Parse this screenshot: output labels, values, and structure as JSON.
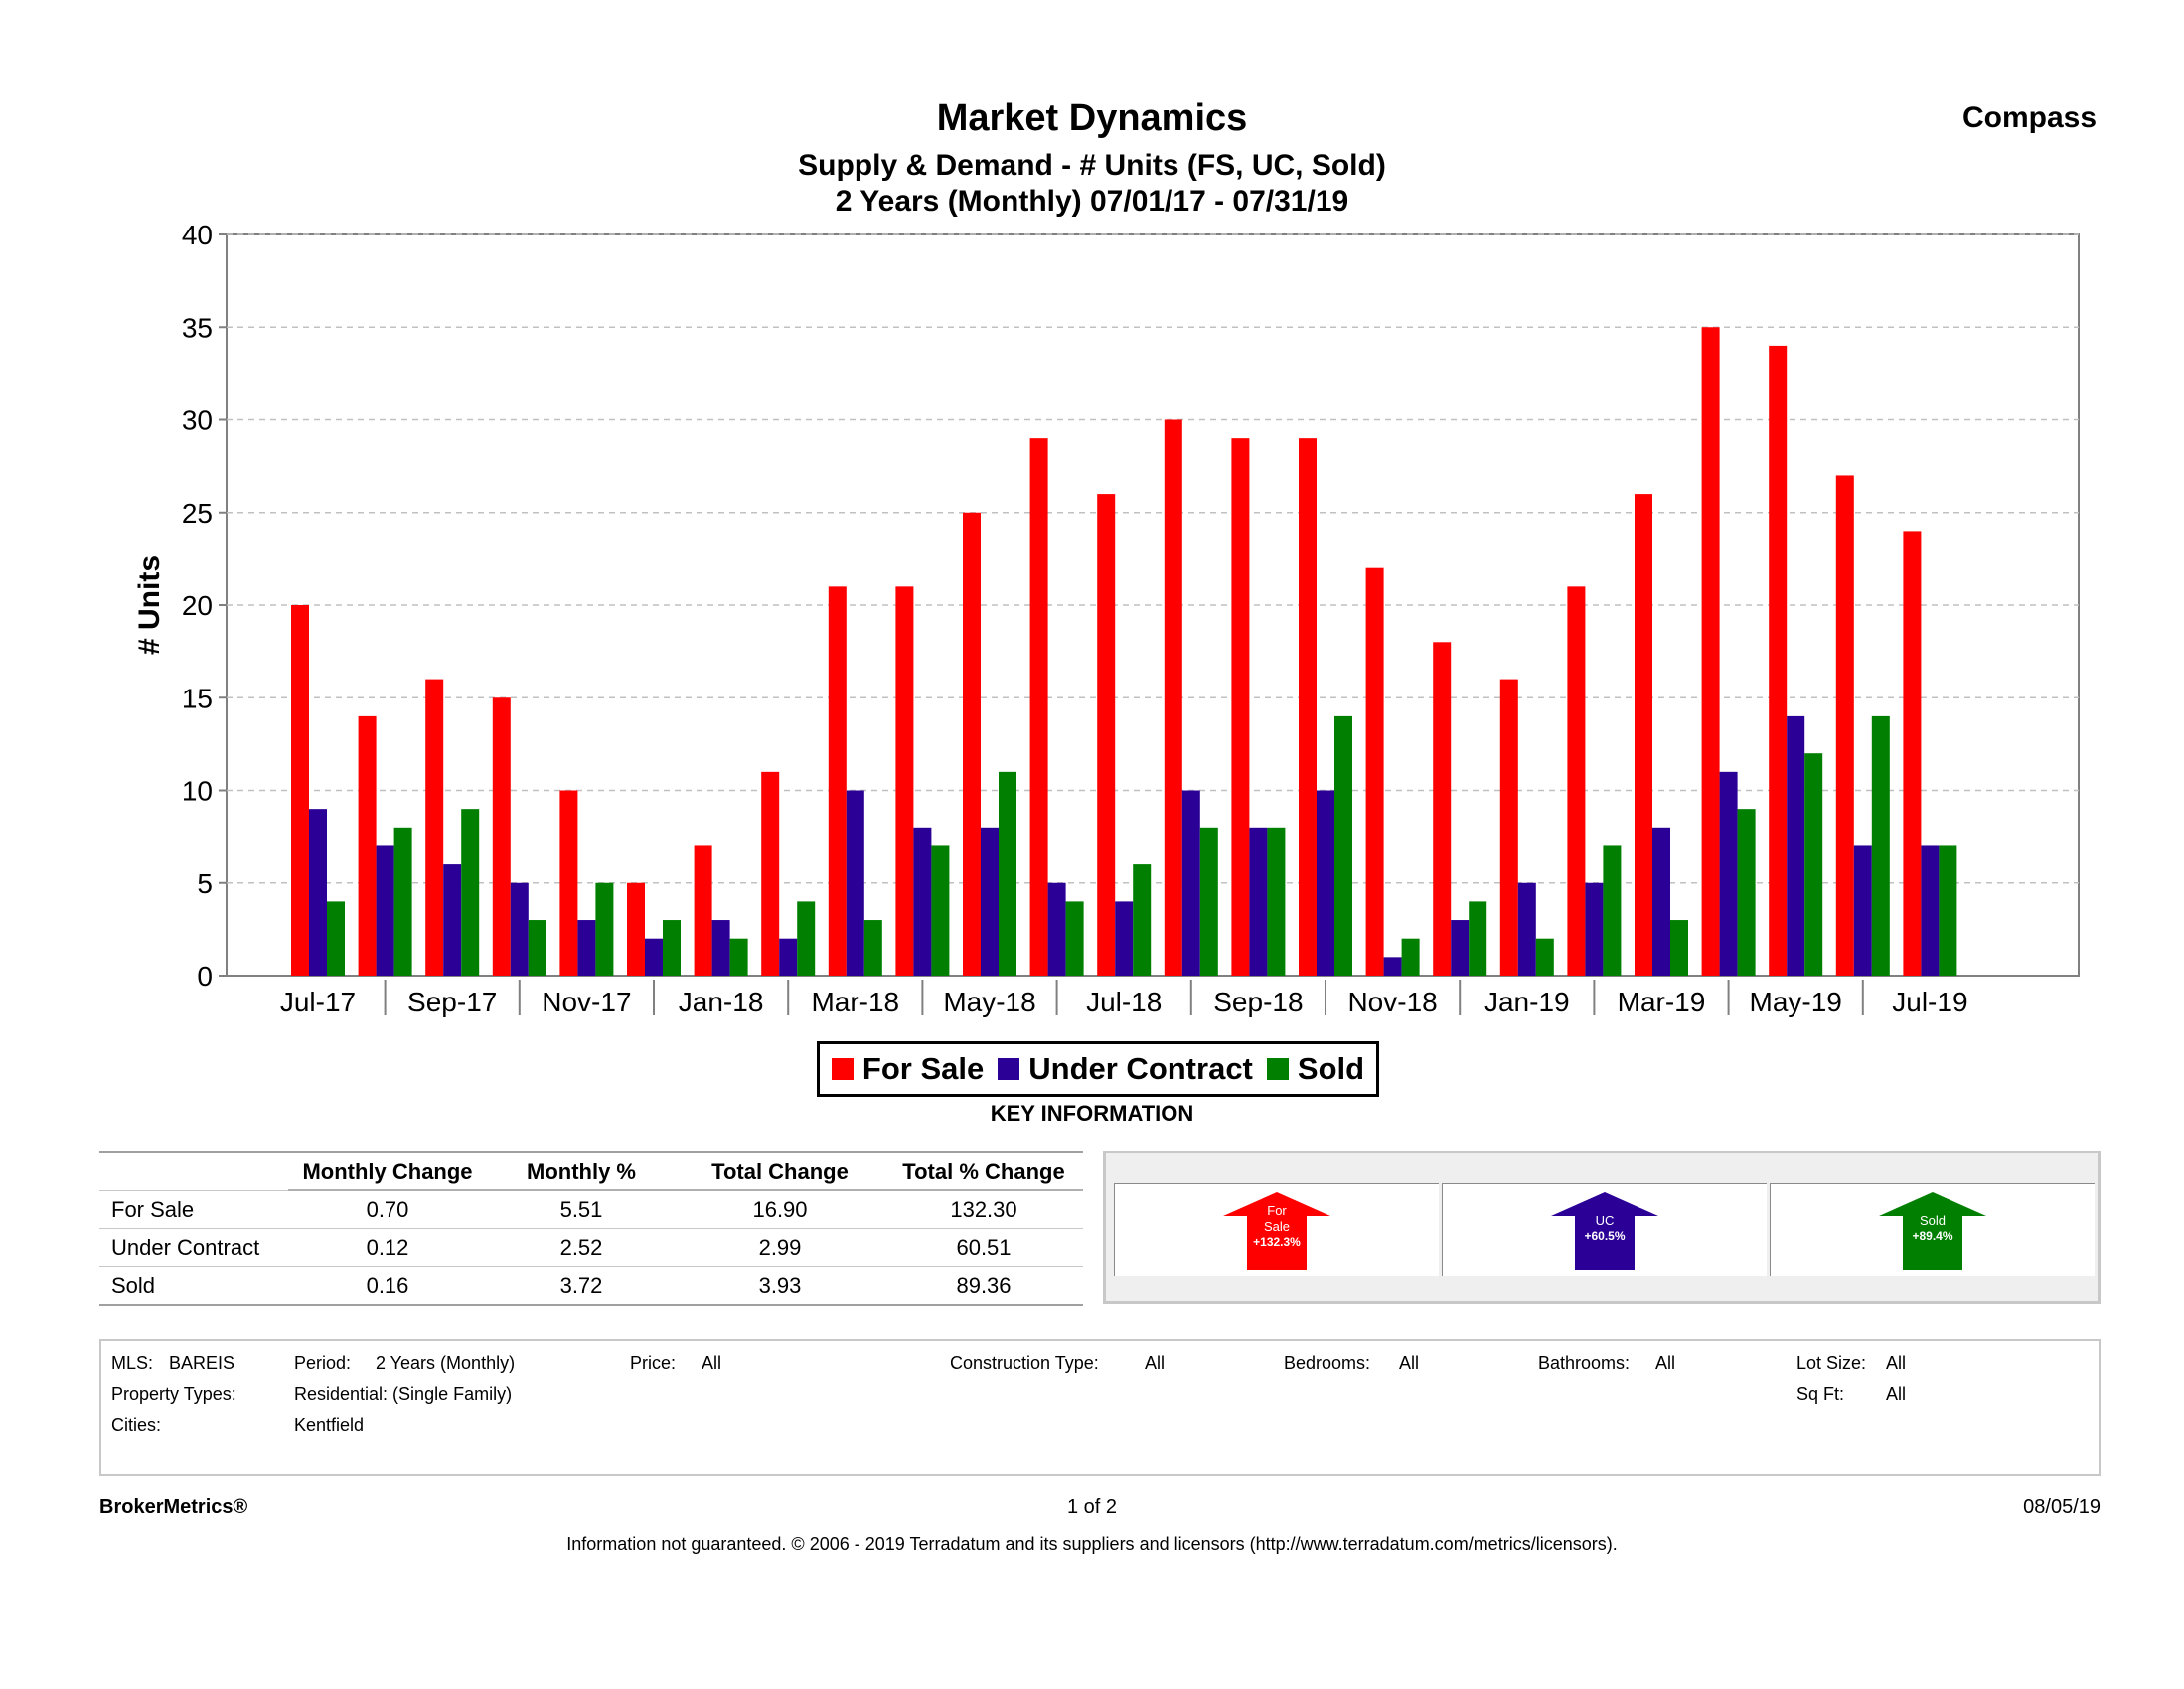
{
  "header": {
    "title": "Market Dynamics",
    "subtitle": "Supply & Demand - # Units (FS, UC, Sold)",
    "period": "2 Years (Monthly) 07/01/17 - 07/31/19",
    "brand": "Compass"
  },
  "chart_data": {
    "type": "bar",
    "title": "Market Dynamics",
    "subtitle": "Supply & Demand - # Units (FS, UC, Sold)",
    "ylabel": "# Units",
    "xlabel": "",
    "ylim": [
      0,
      40
    ],
    "yticks": [
      0,
      5,
      10,
      15,
      20,
      25,
      30,
      35,
      40
    ],
    "grid": true,
    "legend_position": "bottom",
    "categories": [
      "Jul-17",
      "Aug-17",
      "Sep-17",
      "Oct-17",
      "Nov-17",
      "Dec-17",
      "Jan-18",
      "Feb-18",
      "Mar-18",
      "Apr-18",
      "May-18",
      "Jun-18",
      "Jul-18",
      "Aug-18",
      "Sep-18",
      "Oct-18",
      "Nov-18",
      "Dec-18",
      "Jan-19",
      "Feb-19",
      "Mar-19",
      "Apr-19",
      "May-19",
      "Jun-19",
      "Jul-19"
    ],
    "tick_labels": [
      "Jul-17",
      "Sep-17",
      "Nov-17",
      "Jan-18",
      "Mar-18",
      "May-18",
      "Jul-18",
      "Sep-18",
      "Nov-18",
      "Jan-19",
      "Mar-19",
      "May-19",
      "Jul-19"
    ],
    "series": [
      {
        "name": "For Sale",
        "color": "#ff0000",
        "values": [
          20,
          14,
          16,
          15,
          10,
          5,
          7,
          11,
          21,
          21,
          25,
          29,
          26,
          30,
          29,
          29,
          22,
          18,
          16,
          21,
          26,
          35,
          34,
          27,
          24
        ]
      },
      {
        "name": "Under Contract",
        "color": "#2a0096",
        "values": [
          9,
          7,
          6,
          5,
          3,
          2,
          3,
          2,
          10,
          8,
          8,
          5,
          4,
          10,
          8,
          10,
          1,
          3,
          5,
          5,
          8,
          11,
          14,
          7,
          7
        ]
      },
      {
        "name": "Sold",
        "color": "#007f00",
        "values": [
          4,
          8,
          9,
          3,
          5,
          3,
          2,
          4,
          3,
          7,
          11,
          4,
          6,
          8,
          8,
          14,
          2,
          4,
          2,
          7,
          3,
          9,
          12,
          14,
          7
        ]
      }
    ]
  },
  "key_info_label": "KEY INFORMATION",
  "stats": {
    "headers": [
      "",
      "Monthly Change",
      "Monthly %",
      "Total Change",
      "Total % Change"
    ],
    "rows": [
      {
        "label": "For Sale",
        "monthly_change": "0.70",
        "monthly_pct": "5.51",
        "total_change": "16.90",
        "total_pct": "132.30"
      },
      {
        "label": "Under Contract",
        "monthly_change": "0.12",
        "monthly_pct": "2.52",
        "total_change": "2.99",
        "total_pct": "60.51"
      },
      {
        "label": "Sold",
        "monthly_change": "0.16",
        "monthly_pct": "3.72",
        "total_change": "3.93",
        "total_pct": "89.36"
      }
    ]
  },
  "arrows": [
    {
      "line1": "For",
      "line2": "Sale",
      "line3": "+132.3%",
      "color": "#ff0000"
    },
    {
      "line1": "UC",
      "line2": "+60.5%",
      "line3": "",
      "color": "#2a0096"
    },
    {
      "line1": "Sold",
      "line2": "+89.4%",
      "line3": "",
      "color": "#007f00"
    }
  ],
  "filters": {
    "mls_label": "MLS:",
    "mls_value": "BAREIS",
    "period_label": "Period:",
    "period_value": "2 Years (Monthly)",
    "price_label": "Price:",
    "price_value": "All",
    "construction_label": "Construction Type:",
    "construction_value": "All",
    "bedrooms_label": "Bedrooms:",
    "bedrooms_value": "All",
    "bathrooms_label": "Bathrooms:",
    "bathrooms_value": "All",
    "lotsize_label": "Lot Size:",
    "lotsize_value": "All",
    "proptypes_label": "Property Types:",
    "proptypes_value": "Residential: (Single Family)",
    "sqft_label": "Sq Ft:",
    "sqft_value": "All",
    "cities_label": "Cities:",
    "cities_value": "Kentfield"
  },
  "footer": {
    "brand": "BrokerMetrics®",
    "page": "1 of 2",
    "date": "08/05/19",
    "disclaimer": "Information not guaranteed.  © 2006 - 2019 Terradatum and its suppliers and licensors (http://www.terradatum.com/metrics/licensors)."
  }
}
